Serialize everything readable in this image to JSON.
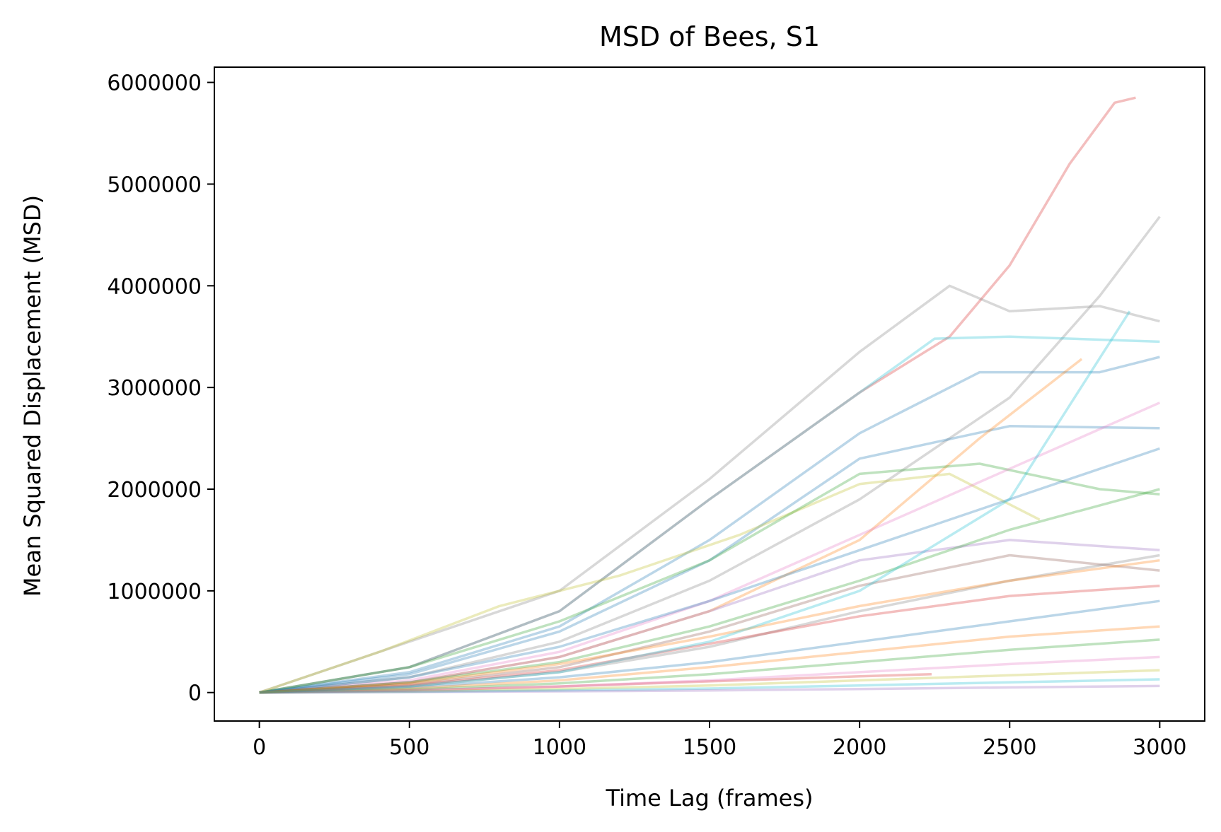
{
  "chart_data": {
    "type": "line",
    "title": "MSD of Bees, S1",
    "xlabel": "Time Lag (frames)",
    "ylabel": "Mean Squared Displacement (MSD)",
    "xlim": [
      -150,
      3150
    ],
    "ylim": [
      -280000,
      6150000
    ],
    "x_ticks": [
      0,
      500,
      1000,
      1500,
      2000,
      2500,
      3000
    ],
    "x_tick_labels": [
      "0",
      "500",
      "1000",
      "1500",
      "2000",
      "2500",
      "3000"
    ],
    "y_ticks": [
      0,
      1000000,
      2000000,
      3000000,
      4000000,
      5000000,
      6000000
    ],
    "y_tick_labels": [
      "0",
      "1000000",
      "2000000",
      "3000000",
      "4000000",
      "5000000",
      "6000000"
    ],
    "grid": false,
    "legend": "none",
    "line_alpha": 0.3,
    "series_note": "Hundreds of unlabeled trajectories; representative series listed below (x in frames, y in MSD units).",
    "series": [
      {
        "color": "#d62728",
        "x": [
          0,
          500,
          1000,
          1500,
          2000,
          2300,
          2500,
          2700,
          2850,
          2920
        ],
        "y": [
          0,
          250000,
          800000,
          1900000,
          2950000,
          3500000,
          4200000,
          5200000,
          5800000,
          5850000
        ]
      },
      {
        "color": "#7f7f7f",
        "x": [
          0,
          300,
          600,
          1000,
          1500,
          2000,
          2300,
          2500,
          2800,
          3000
        ],
        "y": [
          0,
          300000,
          600000,
          1000000,
          2100000,
          3350000,
          4000000,
          3750000,
          3800000,
          3650000
        ]
      },
      {
        "color": "#7f7f7f",
        "x": [
          0,
          500,
          1000,
          1500,
          2000,
          2500,
          2800,
          3000
        ],
        "y": [
          0,
          150000,
          500000,
          1100000,
          1900000,
          2900000,
          3900000,
          4680000
        ]
      },
      {
        "color": "#17becf",
        "x": [
          0,
          500,
          1000,
          1500,
          2000,
          2250,
          2500,
          3000
        ],
        "y": [
          0,
          250000,
          800000,
          1900000,
          2950000,
          3480000,
          3500000,
          3450000
        ]
      },
      {
        "color": "#1f77b4",
        "x": [
          0,
          500,
          1000,
          1500,
          2000,
          2400,
          2800,
          3000
        ],
        "y": [
          0,
          200000,
          650000,
          1500000,
          2550000,
          3150000,
          3150000,
          3300000
        ]
      },
      {
        "color": "#1f77b4",
        "x": [
          0,
          500,
          1000,
          1500,
          2000,
          2500,
          3000
        ],
        "y": [
          0,
          180000,
          600000,
          1300000,
          2300000,
          2620000,
          2600000
        ]
      },
      {
        "color": "#ff7f0e",
        "x": [
          0,
          500,
          1000,
          1500,
          2000,
          2400,
          2740
        ],
        "y": [
          0,
          100000,
          350000,
          800000,
          1500000,
          2500000,
          3280000
        ]
      },
      {
        "color": "#bcbd22",
        "x": [
          0,
          400,
          800,
          1200,
          1600,
          2000,
          2300,
          2600
        ],
        "y": [
          0,
          400000,
          850000,
          1150000,
          1550000,
          2050000,
          2150000,
          1700000
        ]
      },
      {
        "color": "#2ca02c",
        "x": [
          0,
          500,
          1000,
          1500,
          2000,
          2400,
          2800,
          3000
        ],
        "y": [
          0,
          250000,
          700000,
          1300000,
          2150000,
          2250000,
          2000000,
          1950000
        ]
      },
      {
        "color": "#e377c2",
        "x": [
          0,
          500,
          1000,
          1500,
          2000,
          2500,
          3000
        ],
        "y": [
          0,
          120000,
          400000,
          900000,
          1550000,
          2200000,
          2850000
        ]
      },
      {
        "color": "#9467bd",
        "x": [
          0,
          500,
          1000,
          1500,
          2000,
          2500,
          3000
        ],
        "y": [
          0,
          100000,
          350000,
          800000,
          1300000,
          1500000,
          1400000
        ]
      },
      {
        "color": "#8c564b",
        "x": [
          0,
          500,
          1000,
          1500,
          2000,
          2500,
          3000
        ],
        "y": [
          0,
          80000,
          250000,
          600000,
          1050000,
          1350000,
          1200000
        ]
      },
      {
        "color": "#d62728",
        "x": [
          0,
          500,
          1000,
          1500,
          2000,
          2240
        ],
        "y": [
          0,
          20000,
          60000,
          110000,
          160000,
          180000
        ]
      },
      {
        "color": "#1f77b4",
        "x": [
          0,
          500,
          1000,
          1500,
          2000,
          2500,
          3000
        ],
        "y": [
          0,
          50000,
          150000,
          300000,
          500000,
          700000,
          900000
        ]
      },
      {
        "color": "#ff7f0e",
        "x": [
          0,
          500,
          1000,
          1500,
          2000,
          2500,
          3000
        ],
        "y": [
          0,
          40000,
          120000,
          250000,
          400000,
          550000,
          650000
        ]
      },
      {
        "color": "#2ca02c",
        "x": [
          0,
          500,
          1000,
          1500,
          2000,
          2500,
          3000
        ],
        "y": [
          0,
          30000,
          90000,
          180000,
          300000,
          420000,
          520000
        ]
      },
      {
        "color": "#e377c2",
        "x": [
          0,
          500,
          1000,
          1500,
          2000,
          2500,
          3000
        ],
        "y": [
          0,
          20000,
          60000,
          120000,
          200000,
          280000,
          350000
        ]
      },
      {
        "color": "#bcbd22",
        "x": [
          0,
          500,
          1000,
          1500,
          2000,
          2500,
          3000
        ],
        "y": [
          0,
          10000,
          35000,
          70000,
          120000,
          170000,
          220000
        ]
      },
      {
        "color": "#17becf",
        "x": [
          0,
          500,
          1000,
          1500,
          2000,
          2500,
          3000
        ],
        "y": [
          0,
          8000,
          20000,
          40000,
          70000,
          100000,
          130000
        ]
      },
      {
        "color": "#9467bd",
        "x": [
          0,
          500,
          1000,
          1500,
          2000,
          2500,
          3000
        ],
        "y": [
          0,
          5000,
          12000,
          20000,
          35000,
          50000,
          65000
        ]
      },
      {
        "color": "#7f7f7f",
        "x": [
          0,
          500,
          1000,
          1500,
          2000,
          2500,
          3000
        ],
        "y": [
          0,
          60000,
          200000,
          450000,
          800000,
          1100000,
          1350000
        ]
      },
      {
        "color": "#1f77b4",
        "x": [
          0,
          500,
          1000,
          1500,
          2000,
          2500,
          3000
        ],
        "y": [
          0,
          150000,
          450000,
          900000,
          1400000,
          1900000,
          2400000
        ]
      },
      {
        "color": "#d62728",
        "x": [
          0,
          500,
          1000,
          1500,
          2000,
          2500,
          3000
        ],
        "y": [
          0,
          70000,
          220000,
          480000,
          750000,
          950000,
          1050000
        ]
      },
      {
        "color": "#2ca02c",
        "x": [
          0,
          500,
          1000,
          1500,
          2000,
          2500,
          3000
        ],
        "y": [
          0,
          100000,
          300000,
          650000,
          1100000,
          1600000,
          2000000
        ]
      },
      {
        "color": "#ff7f0e",
        "x": [
          0,
          500,
          1000,
          1500,
          2000,
          2500,
          3000
        ],
        "y": [
          0,
          90000,
          280000,
          550000,
          850000,
          1100000,
          1300000
        ]
      },
      {
        "color": "#17becf",
        "x": [
          0,
          500,
          1000,
          1500,
          2000,
          2500,
          2900
        ],
        "y": [
          0,
          60000,
          200000,
          500000,
          1000000,
          1900000,
          3750000
        ]
      }
    ]
  }
}
